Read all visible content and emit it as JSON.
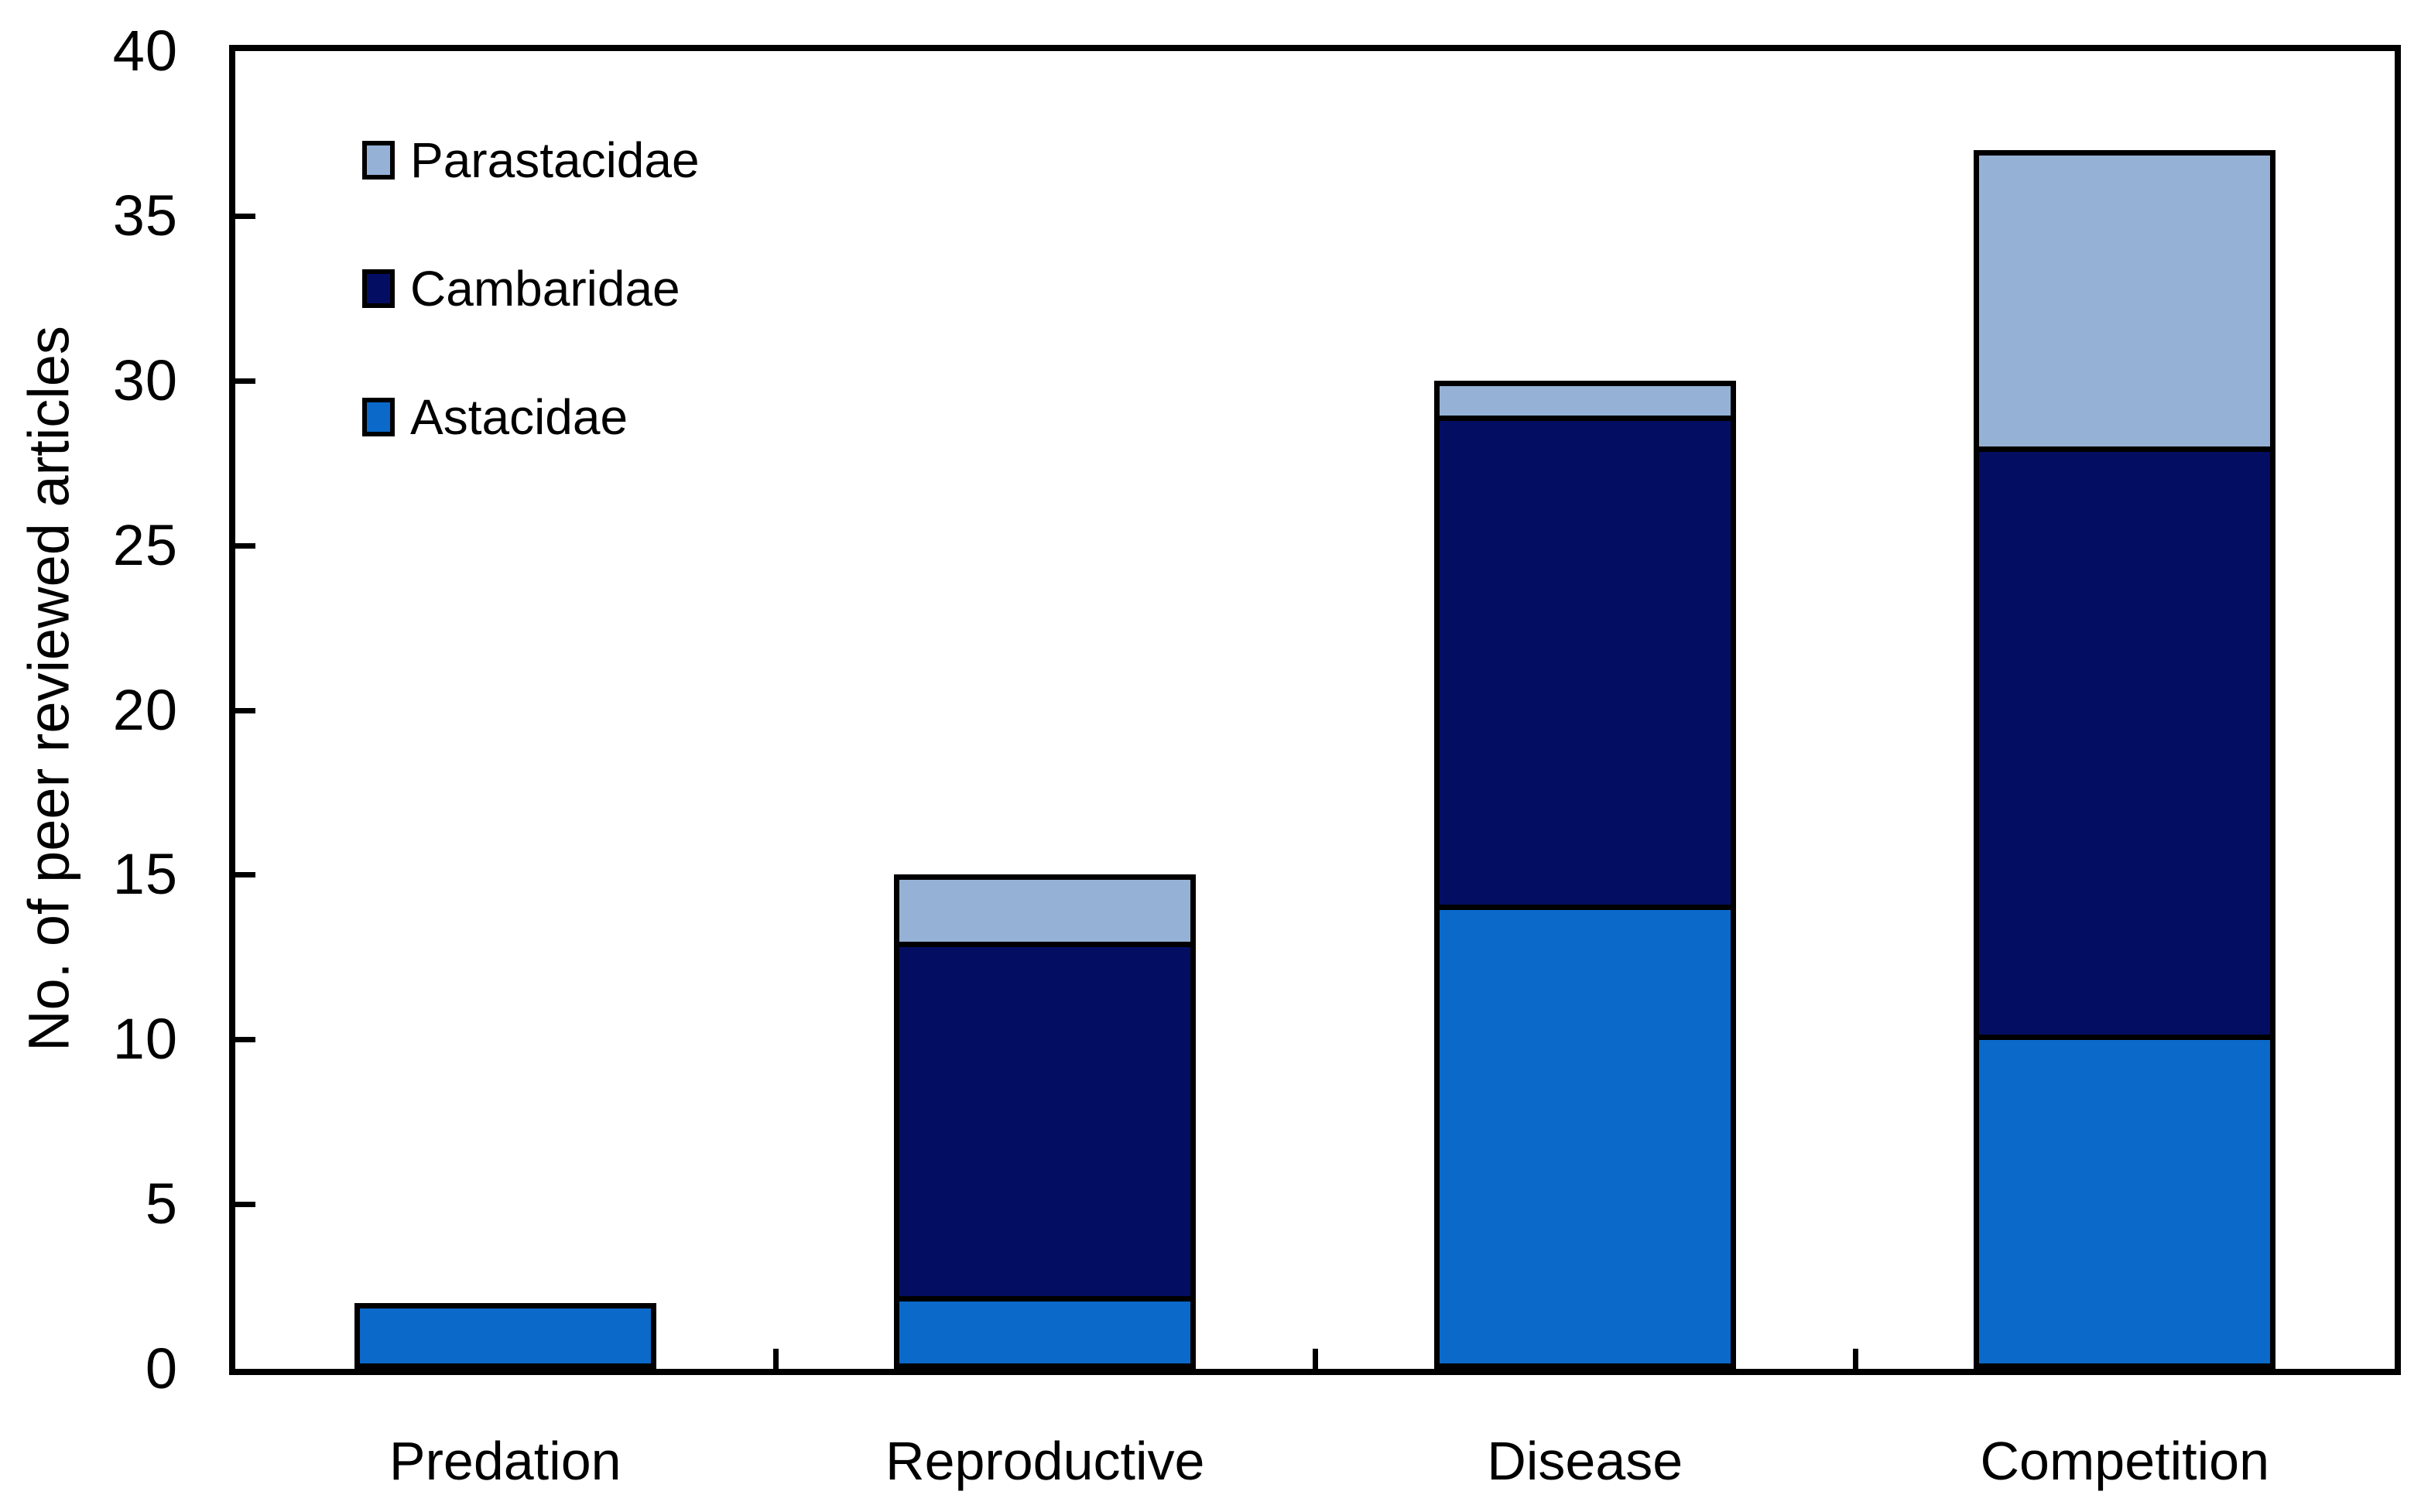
{
  "chart_data": {
    "type": "bar",
    "stacked": true,
    "title": "",
    "xlabel": "",
    "ylabel": "No. of peer reviewed articles",
    "ylim": [
      0,
      40
    ],
    "yticks": [
      0,
      5,
      10,
      15,
      20,
      25,
      30,
      35,
      40
    ],
    "grid": false,
    "categories": [
      "Predation",
      "Reproductive",
      "Disease",
      "Competition"
    ],
    "series": [
      {
        "name": "Astacidae",
        "color": "#0a69c9",
        "values": [
          2,
          2,
          14,
          10
        ]
      },
      {
        "name": "Cambaridae",
        "color": "#030e62",
        "values": [
          0,
          11,
          15,
          18
        ]
      },
      {
        "name": "Parastacidae",
        "color": "#95b2d6",
        "values": [
          0,
          2,
          1,
          9
        ]
      }
    ],
    "stack_totals": [
      2,
      15,
      30,
      37
    ],
    "legend_position": "top-left",
    "legend_items": [
      "Parastacidae",
      "Cambaridae",
      "Astacidae"
    ],
    "axis_color": "#000000",
    "bar_border_color": "#000000",
    "background_color": "#ffffff"
  }
}
